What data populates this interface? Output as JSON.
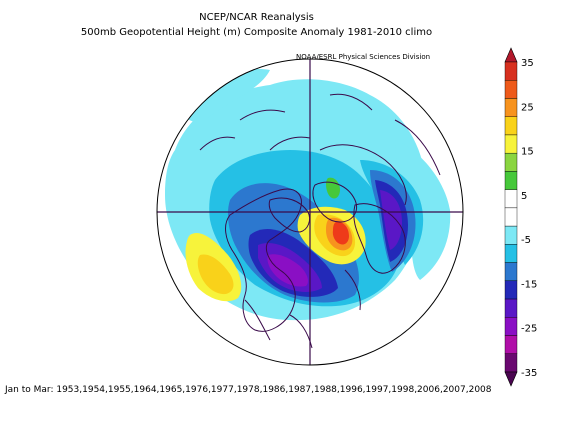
{
  "title": "NCEP/NCAR Reanalysis",
  "subtitle": "500mb Geopotential Height (m) Composite Anomaly 1981-2010 climo",
  "credit": "NOAA/ESRL Physical Sciences Division",
  "footer": "Jan to Mar: 1953,1954,1955,1964,1965,1976,1977,1978,1986,1987,1988,1996,1997,1998,2006,2007,2008",
  "colorbar": {
    "labels": [
      "35",
      "25",
      "15",
      "5",
      "-5",
      "-15",
      "-25",
      "-35"
    ],
    "colors": [
      "#d7301f",
      "#ee5a1a",
      "#f7931e",
      "#f9d21a",
      "#f7f33b",
      "#8ad540",
      "#46c83a",
      "#ffffff",
      "#ffffff",
      "#7de8f5",
      "#25c0e5",
      "#2c78cf",
      "#2329b8",
      "#5a17c6",
      "#8a0fc4",
      "#b00ea8",
      "#6a0870"
    ]
  },
  "map": {
    "projection": "polar-stereographic",
    "colors": {
      "pos_low": "#f7f33b",
      "pos_mid": "#f9d21a",
      "pos_high": "#f7931e",
      "pos_max": "#ee3a1a",
      "pos_green": "#46c83a",
      "neg_light": "#7de8f5",
      "neg_cyan": "#25c0e5",
      "neg_blue": "#2c78cf",
      "neg_deep": "#2329b8",
      "neg_violet": "#5a17c6",
      "neg_purple": "#8a0fc4",
      "neg_dark": "#6a0870",
      "coast": "#3a0a4a"
    }
  }
}
